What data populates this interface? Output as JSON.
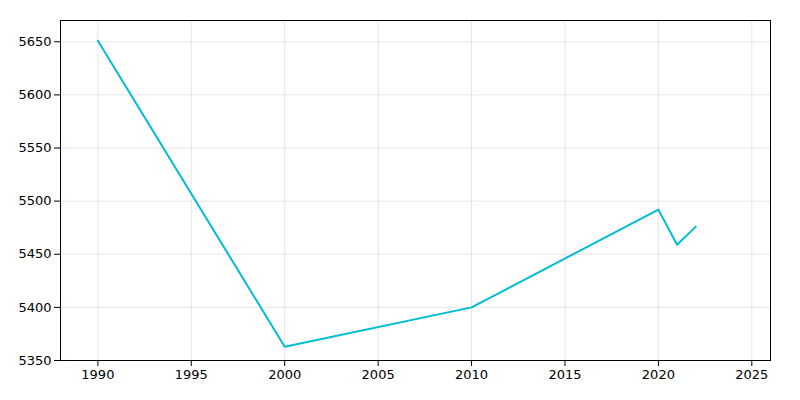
{
  "chart_data": {
    "type": "line",
    "x": [
      1990,
      2000,
      2010,
      2020,
      2021,
      2022
    ],
    "values": [
      5651,
      5363,
      5400,
      5492,
      5459,
      5476
    ],
    "color": "#00BCD4",
    "xlim": [
      1988,
      2026
    ],
    "ylim": [
      5350,
      5670
    ],
    "xticks": [
      1990,
      1995,
      2000,
      2005,
      2010,
      2015,
      2020,
      2025
    ],
    "yticks": [
      5350,
      5400,
      5450,
      5500,
      5550,
      5600,
      5650
    ],
    "grid": true
  }
}
